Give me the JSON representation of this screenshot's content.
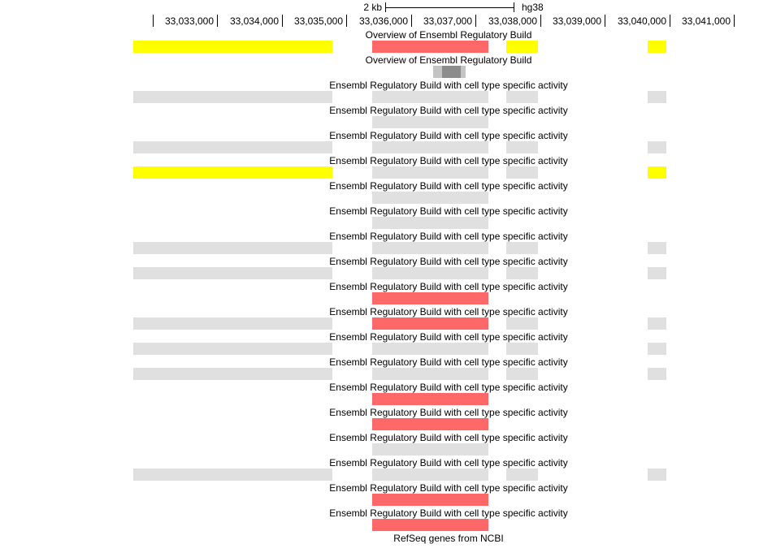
{
  "ruler": {
    "scale_label": "2 kb",
    "scale_kb": 2,
    "assembly": "hg38",
    "ticks": [
      "33,033,000",
      "33,034,000",
      "33,035,000",
      "33,036,000",
      "33,037,000",
      "33,038,000",
      "33,039,000",
      "33,040,000",
      "33,041,000"
    ],
    "tick_values": [
      33033000,
      33034000,
      33035000,
      33036000,
      33037000,
      33038000,
      33039000,
      33040000,
      33041000
    ]
  },
  "colors": {
    "yellow": "#ffff00",
    "red": "#ff6868",
    "grey": "#e0e0e0",
    "dark_grey": "#8c8c8c",
    "light_grey": "#c4c4c4"
  },
  "segments": {
    "A": [
      33031704,
      33034786
    ],
    "B": [
      33035403,
      33037201
    ],
    "C": [
      33037478,
      33037969
    ],
    "D": [
      33039667,
      33039956
    ]
  },
  "tracks": [
    {
      "label": "Overview of Ensembl Regulatory Build",
      "features": {
        "A": "yellow",
        "B": "red",
        "C": "yellow",
        "D": "yellow"
      }
    },
    {
      "label": "Overview of Ensembl Regulatory Build",
      "density": [
        [
          33036346,
          33036849,
          "light_grey"
        ],
        [
          33036484,
          33036774,
          "dark_grey"
        ]
      ]
    },
    {
      "label": "Ensembl Regulatory Build with cell type specific activity",
      "features": {
        "A": "grey",
        "B": "grey",
        "C": "grey",
        "D": "grey"
      }
    },
    {
      "label": "Ensembl Regulatory Build with cell type specific activity",
      "features": {
        "B": "grey"
      }
    },
    {
      "label": "Ensembl Regulatory Build with cell type specific activity",
      "features": {
        "A": "grey",
        "B": "grey",
        "C": "grey",
        "D": "grey"
      }
    },
    {
      "label": "Ensembl Regulatory Build with cell type specific activity",
      "features": {
        "A": "yellow",
        "B": "grey",
        "C": "grey",
        "D": "yellow"
      }
    },
    {
      "label": "Ensembl Regulatory Build with cell type specific activity",
      "features": {
        "B": "grey"
      }
    },
    {
      "label": "Ensembl Regulatory Build with cell type specific activity",
      "features": {
        "B": "grey"
      }
    },
    {
      "label": "Ensembl Regulatory Build with cell type specific activity",
      "features": {
        "A": "grey",
        "B": "grey",
        "C": "grey",
        "D": "grey"
      }
    },
    {
      "label": "Ensembl Regulatory Build with cell type specific activity",
      "features": {
        "A": "grey",
        "B": "grey",
        "C": "grey",
        "D": "grey"
      }
    },
    {
      "label": "Ensembl Regulatory Build with cell type specific activity",
      "features": {
        "B": "red"
      }
    },
    {
      "label": "Ensembl Regulatory Build with cell type specific activity",
      "features": {
        "A": "grey",
        "B": "red",
        "C": "grey",
        "D": "grey"
      }
    },
    {
      "label": "Ensembl Regulatory Build with cell type specific activity",
      "features": {
        "A": "grey",
        "B": "grey",
        "C": "grey",
        "D": "grey"
      }
    },
    {
      "label": "Ensembl Regulatory Build with cell type specific activity",
      "features": {
        "A": "grey",
        "B": "grey",
        "C": "grey",
        "D": "grey"
      }
    },
    {
      "label": "Ensembl Regulatory Build with cell type specific activity",
      "features": {
        "B": "red"
      }
    },
    {
      "label": "Ensembl Regulatory Build with cell type specific activity",
      "features": {
        "B": "red"
      }
    },
    {
      "label": "Ensembl Regulatory Build with cell type specific activity",
      "features": {
        "B": "grey"
      }
    },
    {
      "label": "Ensembl Regulatory Build with cell type specific activity",
      "features": {
        "A": "grey",
        "B": "grey",
        "C": "grey",
        "D": "grey"
      }
    },
    {
      "label": "Ensembl Regulatory Build with cell type specific activity",
      "features": {
        "B": "red"
      }
    },
    {
      "label": "Ensembl Regulatory Build with cell type specific activity",
      "features": {
        "B": "red"
      }
    },
    {
      "label": "RefSeq genes from NCBI"
    }
  ]
}
